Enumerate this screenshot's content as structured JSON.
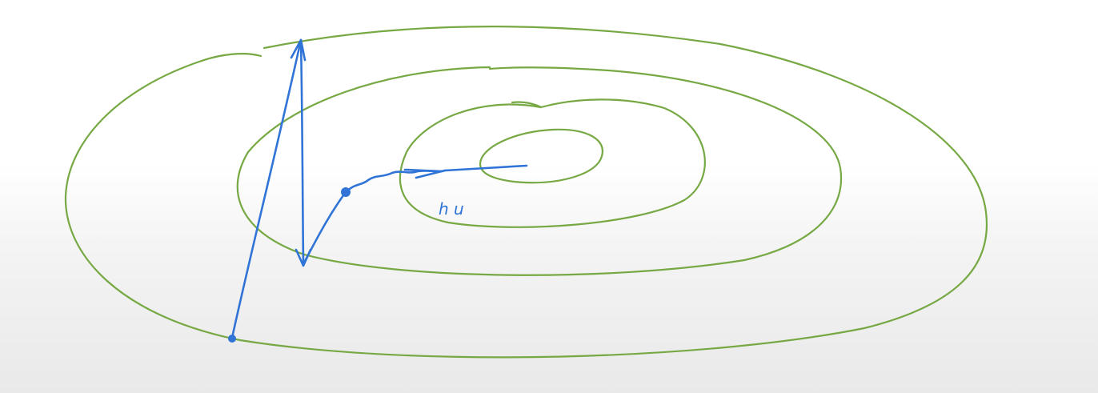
{
  "colors": {
    "contour": "#76a843",
    "ink": "#2f74d6"
  },
  "annotations": {
    "handwritten_label": "h u"
  }
}
